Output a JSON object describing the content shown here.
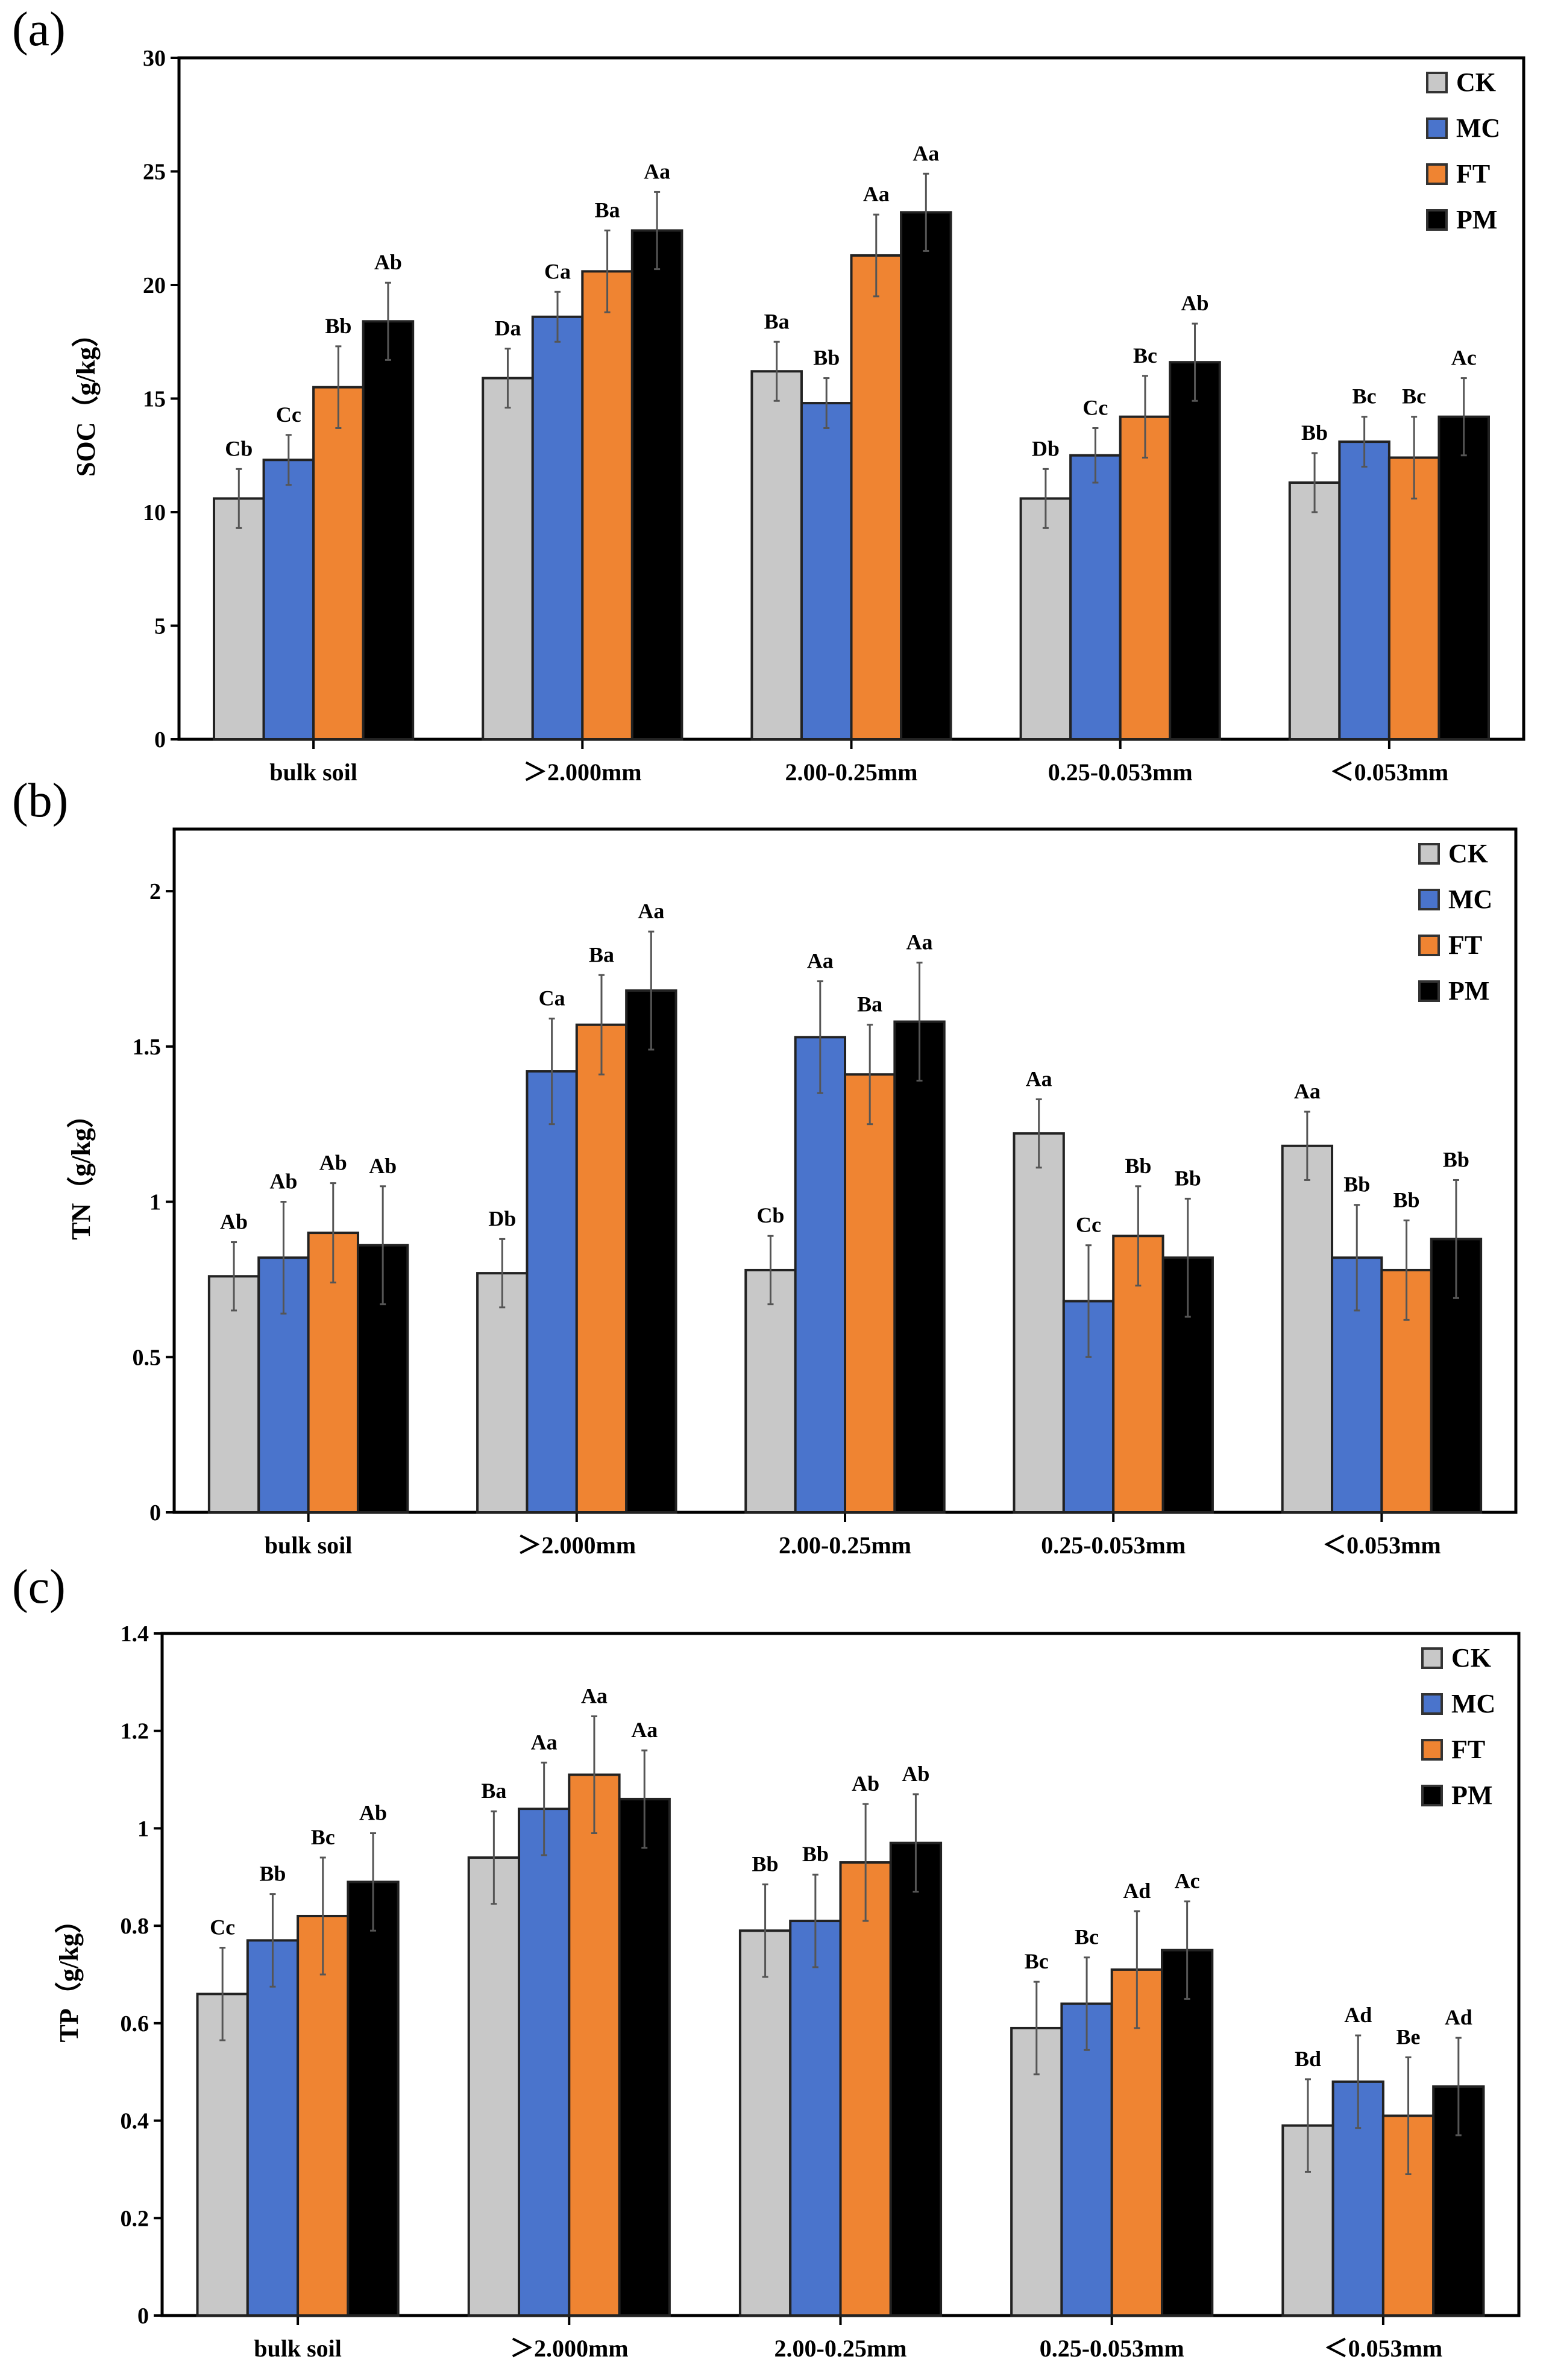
{
  "colors": {
    "CK": "#c8c8c8",
    "MC": "#4a74cc",
    "FT": "#ef8432",
    "PM": "#000000"
  },
  "chart_data": [
    {
      "type": "bar",
      "panel_label": "(a)",
      "title": "",
      "xlabel": "",
      "ylabel": "SOC（g/kg）",
      "ylim": [
        0,
        30
      ],
      "yticks": [
        0,
        5,
        10,
        15,
        20,
        25,
        30
      ],
      "ytick_labels": [
        "0",
        "5",
        "10",
        "15",
        "20",
        "25",
        "30"
      ],
      "categories": [
        "bulk soil",
        "＞2.000mm",
        "2.00-0.25mm",
        "0.25-0.053mm",
        "＜0.053mm"
      ],
      "legend": {
        "position": "top-right",
        "entries": [
          "CK",
          "MC",
          "FT",
          "PM"
        ]
      },
      "series": [
        {
          "name": "CK",
          "values": [
            10.6,
            15.9,
            16.2,
            10.6,
            11.3
          ],
          "errors": [
            1.3,
            1.3,
            1.3,
            1.3,
            1.3
          ],
          "letters": [
            "Cb",
            "Da",
            "Ba",
            "Db",
            "Bb"
          ]
        },
        {
          "name": "MC",
          "values": [
            12.3,
            18.6,
            14.8,
            12.5,
            13.1
          ],
          "errors": [
            1.1,
            1.1,
            1.1,
            1.2,
            1.1
          ],
          "letters": [
            "Cc",
            "Ca",
            "Bb",
            "Cc",
            "Bc"
          ]
        },
        {
          "name": "FT",
          "values": [
            15.5,
            20.6,
            21.3,
            14.2,
            12.4
          ],
          "errors": [
            1.8,
            1.8,
            1.8,
            1.8,
            1.8
          ],
          "letters": [
            "Bb",
            "Ba",
            "Aa",
            "Bc",
            "Bc"
          ]
        },
        {
          "name": "PM",
          "values": [
            18.4,
            22.4,
            23.2,
            16.6,
            14.2
          ],
          "errors": [
            1.7,
            1.7,
            1.7,
            1.7,
            1.7
          ],
          "letters": [
            "Ab",
            "Aa",
            "Aa",
            "Ab",
            "Ac"
          ]
        }
      ]
    },
    {
      "type": "bar",
      "panel_label": "(b)",
      "title": "",
      "xlabel": "",
      "ylabel": "TN（g/kg）",
      "ylim": [
        0,
        2.2
      ],
      "yticks": [
        0,
        0.5,
        1,
        1.5,
        2
      ],
      "ytick_labels": [
        "0",
        "0.5",
        "1",
        "1.5",
        "2"
      ],
      "categories": [
        "bulk soil",
        "＞2.000mm",
        "2.00-0.25mm",
        "0.25-0.053mm",
        "＜0.053mm"
      ],
      "legend": {
        "position": "top-right",
        "entries": [
          "CK",
          "MC",
          "FT",
          "PM"
        ]
      },
      "series": [
        {
          "name": "CK",
          "values": [
            0.76,
            0.77,
            0.78,
            1.22,
            1.18
          ],
          "errors": [
            0.11,
            0.11,
            0.11,
            0.11,
            0.11
          ],
          "letters": [
            "Ab",
            "Db",
            "Cb",
            "Aa",
            "Aa"
          ]
        },
        {
          "name": "MC",
          "values": [
            0.82,
            1.42,
            1.53,
            0.68,
            0.82
          ],
          "errors": [
            0.18,
            0.17,
            0.18,
            0.18,
            0.17
          ],
          "letters": [
            "Ab",
            "Ca",
            "Aa",
            "Cc",
            "Bb"
          ]
        },
        {
          "name": "FT",
          "values": [
            0.9,
            1.57,
            1.41,
            0.89,
            0.78
          ],
          "errors": [
            0.16,
            0.16,
            0.16,
            0.16,
            0.16
          ],
          "letters": [
            "Ab",
            "Ba",
            "Ba",
            "Bb",
            "Bb"
          ]
        },
        {
          "name": "PM",
          "values": [
            0.86,
            1.68,
            1.58,
            0.82,
            0.88
          ],
          "errors": [
            0.19,
            0.19,
            0.19,
            0.19,
            0.19
          ],
          "letters": [
            "Ab",
            "Aa",
            "Aa",
            "Bb",
            "Bb"
          ]
        }
      ]
    },
    {
      "type": "bar",
      "panel_label": "(c)",
      "title": "",
      "xlabel": "",
      "ylabel": "TP（g/kg）",
      "ylim": [
        0,
        1.4
      ],
      "yticks": [
        0,
        0.2,
        0.4,
        0.6,
        0.8,
        1,
        1.2,
        1.4
      ],
      "ytick_labels": [
        "0",
        "0.2",
        "0.4",
        "0.6",
        "0.8",
        "1",
        "1.2",
        "1.4"
      ],
      "categories": [
        "bulk soil",
        "＞2.000mm",
        "2.00-0.25mm",
        "0.25-0.053mm",
        "＜0.053mm"
      ],
      "legend": {
        "position": "top-right",
        "entries": [
          "CK",
          "MC",
          "FT",
          "PM"
        ]
      },
      "series": [
        {
          "name": "CK",
          "values": [
            0.66,
            0.94,
            0.79,
            0.59,
            0.39
          ],
          "errors": [
            0.095,
            0.095,
            0.095,
            0.095,
            0.095
          ],
          "letters": [
            "Cc",
            "Ba",
            "Bb",
            "Bc",
            "Bd"
          ]
        },
        {
          "name": "MC",
          "values": [
            0.77,
            1.04,
            0.81,
            0.64,
            0.48
          ],
          "errors": [
            0.095,
            0.095,
            0.095,
            0.095,
            0.095
          ],
          "letters": [
            "Bb",
            "Aa",
            "Bb",
            "Bc",
            "Ad"
          ]
        },
        {
          "name": "FT",
          "values": [
            0.82,
            1.11,
            0.93,
            0.71,
            0.41
          ],
          "errors": [
            0.12,
            0.12,
            0.12,
            0.12,
            0.12
          ],
          "letters": [
            "Bc",
            "Aa",
            "Ab",
            "Ad",
            "Be"
          ]
        },
        {
          "name": "PM",
          "values": [
            0.89,
            1.06,
            0.97,
            0.75,
            0.47
          ],
          "errors": [
            0.1,
            0.1,
            0.1,
            0.1,
            0.1
          ],
          "letters": [
            "Ab",
            "Aa",
            "Ab",
            "Ac",
            "Ad"
          ]
        }
      ]
    }
  ]
}
